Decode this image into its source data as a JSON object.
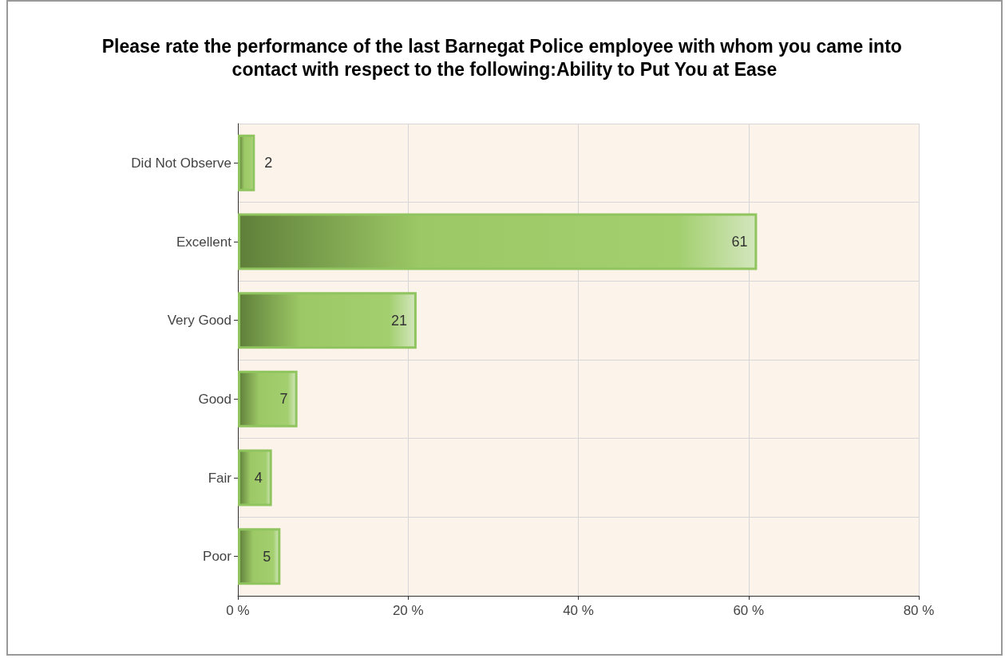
{
  "chart_data": {
    "type": "bar",
    "orientation": "horizontal",
    "title": "Please rate the performance of the last Barnegat Police employee with whom you came into contact with respect to the following:Ability to Put You at Ease",
    "categories": [
      "Did Not Observe",
      "Excellent",
      "Very Good",
      "Good",
      "Fair",
      "Poor"
    ],
    "values": [
      2,
      61,
      21,
      7,
      4,
      5
    ],
    "color": "#8fc45f",
    "data_labels": true,
    "xlim": [
      0,
      80
    ],
    "xticks": [
      {
        "value": 0,
        "label": "0 %"
      },
      {
        "value": 20,
        "label": "20 %"
      },
      {
        "value": 40,
        "label": "40 %"
      },
      {
        "value": 60,
        "label": "60 %"
      },
      {
        "value": 80,
        "label": "80 %"
      }
    ],
    "grid": true
  }
}
